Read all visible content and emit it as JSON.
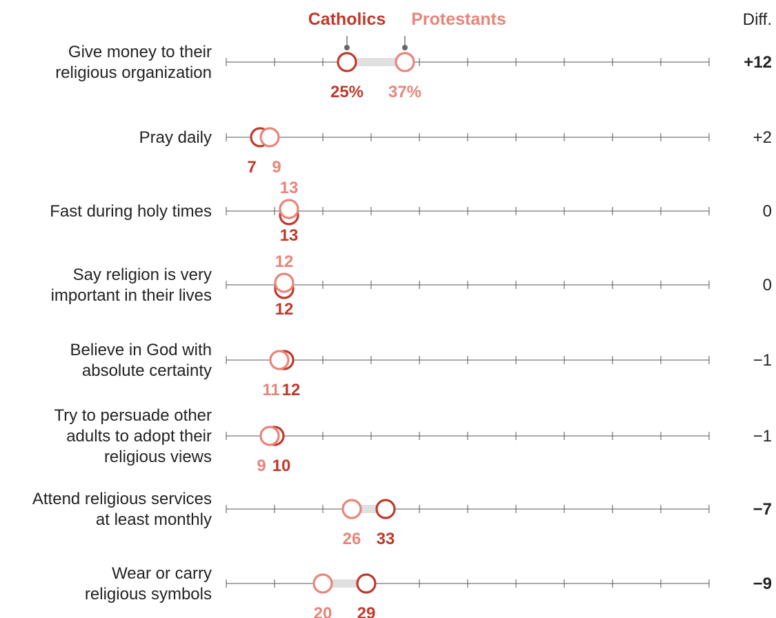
{
  "colors": {
    "catholic": "#c0392b",
    "protestant": "#e8857a",
    "axis": "#555555",
    "connector": "#e0e0e0",
    "text": "#222222"
  },
  "chart_data": {
    "type": "dot",
    "series": [
      {
        "name": "Catholics",
        "key": "catholic"
      },
      {
        "name": "Protestants",
        "key": "protestant"
      }
    ],
    "diff_header": "Diff.",
    "xlim": [
      0,
      100
    ],
    "rows": [
      {
        "label": [
          "Give money to their",
          "religious organization"
        ],
        "catholic": 25,
        "protestant": 37,
        "catholic_label": "25%",
        "protestant_label": "37%",
        "diff": "+12",
        "bold": true
      },
      {
        "label": [
          "Pray daily"
        ],
        "catholic": 7,
        "protestant": 9,
        "catholic_label": "7",
        "protestant_label": "9",
        "diff": "+2",
        "bold": false
      },
      {
        "label": [
          "Fast during holy times"
        ],
        "catholic": 13,
        "protestant": 13,
        "catholic_label": "13",
        "protestant_label": "13",
        "diff": "0",
        "bold": false
      },
      {
        "label": [
          "Say religion is very",
          "important in their lives"
        ],
        "catholic": 12,
        "protestant": 12,
        "catholic_label": "12",
        "protestant_label": "12",
        "diff": "0",
        "bold": false
      },
      {
        "label": [
          "Believe in God with",
          "absolute certainty"
        ],
        "catholic": 12,
        "protestant": 11,
        "catholic_label": "12",
        "protestant_label": "11",
        "diff": "−1",
        "bold": false
      },
      {
        "label": [
          "Try to persuade other",
          "adults to adopt their",
          "religious views"
        ],
        "catholic": 10,
        "protestant": 9,
        "catholic_label": "10",
        "protestant_label": "9",
        "diff": "−1",
        "bold": false
      },
      {
        "label": [
          "Attend religious services",
          "at least monthly"
        ],
        "catholic": 33,
        "protestant": 26,
        "catholic_label": "33",
        "protestant_label": "26",
        "diff": "−7",
        "bold": true
      },
      {
        "label": [
          "Wear or carry",
          "religious symbols"
        ],
        "catholic": 29,
        "protestant": 20,
        "catholic_label": "29",
        "protestant_label": "20",
        "diff": "−9",
        "bold": true
      }
    ]
  }
}
